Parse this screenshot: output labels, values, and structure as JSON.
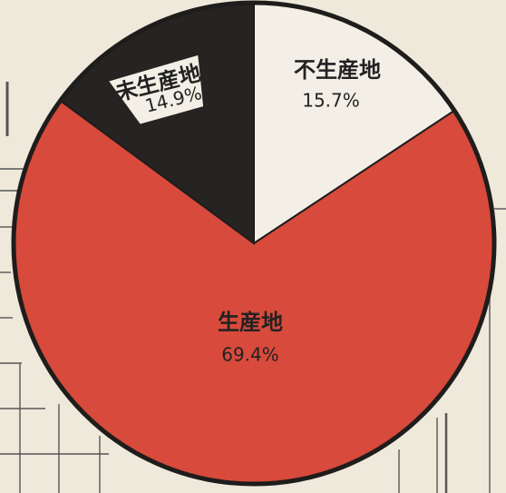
{
  "chart_data": {
    "type": "pie",
    "categories": [
      "不生産地",
      "生産地",
      "未生産地"
    ],
    "values": [
      15.7,
      69.4,
      14.9
    ],
    "value_labels": [
      "15.7%",
      "69.4%",
      "14.9%"
    ],
    "colors": [
      "#f3efe6",
      "#d84a3b",
      "#262423"
    ]
  }
}
